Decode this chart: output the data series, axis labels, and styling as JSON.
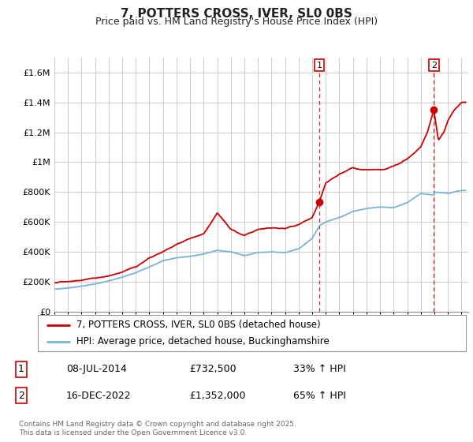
{
  "title": "7, POTTERS CROSS, IVER, SL0 0BS",
  "subtitle": "Price paid vs. HM Land Registry's House Price Index (HPI)",
  "legend_line1": "7, POTTERS CROSS, IVER, SL0 0BS (detached house)",
  "legend_line2": "HPI: Average price, detached house, Buckinghamshire",
  "footnote": "Contains HM Land Registry data © Crown copyright and database right 2025.\nThis data is licensed under the Open Government Licence v3.0.",
  "annotation1_date": "08-JUL-2014",
  "annotation1_price": "£732,500",
  "annotation1_hpi": "33% ↑ HPI",
  "annotation2_date": "16-DEC-2022",
  "annotation2_price": "£1,352,000",
  "annotation2_hpi": "65% ↑ HPI",
  "vline1_x": 2014.53,
  "vline2_x": 2022.96,
  "sale1_x": 2014.53,
  "sale1_y": 732500,
  "sale2_x": 2022.96,
  "sale2_y": 1352000,
  "hpi_color": "#7ab3d4",
  "price_color": "#cc0000",
  "vline_color": "#cc0000",
  "background_color": "#ffffff",
  "grid_color": "#cccccc",
  "ylim_min": 0,
  "ylim_max": 1700000,
  "xlim_min": 1995,
  "xlim_max": 2025.5,
  "yticks": [
    0,
    200000,
    400000,
    600000,
    800000,
    1000000,
    1200000,
    1400000,
    1600000
  ],
  "ytick_labels": [
    "£0",
    "£200K",
    "£400K",
    "£600K",
    "£800K",
    "£1M",
    "£1.2M",
    "£1.4M",
    "£1.6M"
  ],
  "xticks": [
    1995,
    1996,
    1997,
    1998,
    1999,
    2000,
    2001,
    2002,
    2003,
    2004,
    2005,
    2006,
    2007,
    2008,
    2009,
    2010,
    2011,
    2012,
    2013,
    2014,
    2015,
    2016,
    2017,
    2018,
    2019,
    2020,
    2021,
    2022,
    2023,
    2024,
    2025
  ]
}
